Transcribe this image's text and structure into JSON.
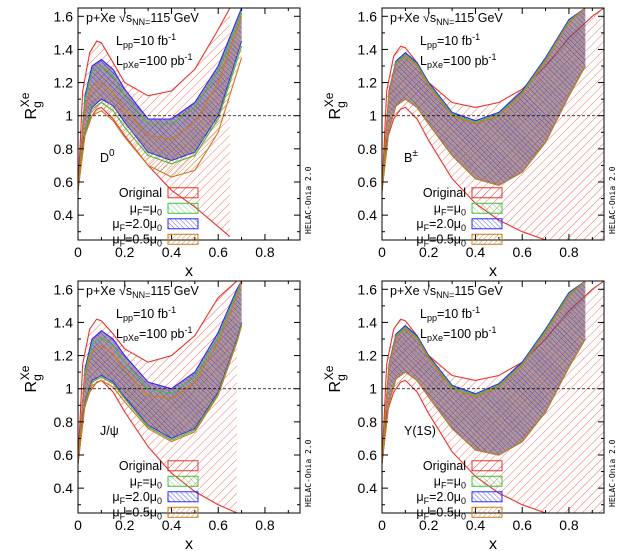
{
  "colors": {
    "original": "#e8322b",
    "mu_1": "#3fbf3f",
    "mu_2": "#2a2aff",
    "mu_05": "#cc7a22",
    "band_fill": "#7a3d70"
  },
  "chart_data": [
    {
      "type": "area",
      "particle": "D⁰",
      "system": "p+Xe √sNN=115 GeV",
      "lumi_pp": "Lpp=10 fb-1",
      "lumi_pxe": "LpXe=100 pb-1",
      "xlabel": "x",
      "ylabel": "RgXe",
      "xlim": [
        0,
        0.95
      ],
      "ylim": [
        0.25,
        1.65
      ],
      "x_ticks": [
        0,
        0.2,
        0.4,
        0.6,
        0.8
      ],
      "x_tick_labels": [
        "0",
        "0.2",
        "0.4",
        "0.6",
        "0.8"
      ],
      "y_ticks": [
        0.4,
        0.6,
        0.8,
        1.0,
        1.2,
        1.4,
        1.6
      ],
      "y_tick_labels": [
        "0.4",
        "0.6",
        "0.8",
        "1",
        "1.2",
        "1.4",
        "1.6"
      ],
      "reference_line_y": 1,
      "legend": [
        "Original",
        "μF=μ0",
        "μF=2.0μ0",
        "μF=0.5μ0"
      ],
      "watermark": "HELAC-Onia 2.0",
      "series": [
        {
          "name": "Original",
          "x": [
            0,
            0.02,
            0.05,
            0.08,
            0.1,
            0.15,
            0.2,
            0.3,
            0.4,
            0.5,
            0.6,
            0.65
          ],
          "upper": [
            0.55,
            1.15,
            1.38,
            1.45,
            1.44,
            1.32,
            1.2,
            1.12,
            1.15,
            1.28,
            1.52,
            1.65
          ],
          "lower": [
            0.55,
            0.85,
            0.98,
            1.04,
            1.05,
            0.98,
            0.88,
            0.7,
            0.55,
            0.45,
            0.33,
            0.27
          ]
        },
        {
          "name": "μF=2.0μ0",
          "x": [
            0,
            0.03,
            0.06,
            0.1,
            0.15,
            0.2,
            0.3,
            0.4,
            0.5,
            0.6,
            0.7
          ],
          "upper": [
            0.55,
            1.12,
            1.3,
            1.34,
            1.28,
            1.16,
            0.98,
            0.98,
            1.08,
            1.3,
            1.65
          ],
          "lower": [
            0.55,
            0.9,
            1.05,
            1.1,
            1.06,
            0.96,
            0.78,
            0.73,
            0.78,
            1.0,
            1.45
          ]
        },
        {
          "name": "μF=μ0",
          "x": [
            0,
            0.03,
            0.06,
            0.1,
            0.15,
            0.2,
            0.3,
            0.4,
            0.5,
            0.6,
            0.7
          ],
          "upper": [
            0.55,
            1.1,
            1.27,
            1.3,
            1.24,
            1.12,
            0.95,
            0.95,
            1.05,
            1.27,
            1.62
          ],
          "lower": [
            0.55,
            0.9,
            1.04,
            1.08,
            1.03,
            0.93,
            0.76,
            0.71,
            0.76,
            0.98,
            1.42
          ]
        },
        {
          "name": "μF=0.5μ0",
          "x": [
            0,
            0.03,
            0.06,
            0.1,
            0.15,
            0.2,
            0.3,
            0.4,
            0.5,
            0.6,
            0.7
          ],
          "upper": [
            0.55,
            1.05,
            1.18,
            1.2,
            1.14,
            1.04,
            0.88,
            0.86,
            0.96,
            1.2,
            1.6
          ],
          "lower": [
            0.55,
            0.88,
            1.0,
            1.03,
            0.97,
            0.87,
            0.7,
            0.63,
            0.67,
            0.9,
            1.35
          ]
        }
      ]
    },
    {
      "type": "area",
      "particle": "B±",
      "system": "p+Xe √sNN=115 GeV",
      "lumi_pp": "Lpp=10 fb-1",
      "lumi_pxe": "LpXe=100 pb-1",
      "xlabel": "x",
      "ylabel": "RgXe",
      "xlim": [
        0,
        0.95
      ],
      "ylim": [
        0.25,
        1.65
      ],
      "x_ticks": [
        0,
        0.2,
        0.4,
        0.6,
        0.8
      ],
      "x_tick_labels": [
        "0",
        "0.2",
        "0.4",
        "0.6",
        "0.8"
      ],
      "y_ticks": [
        0.4,
        0.6,
        0.8,
        1.0,
        1.2,
        1.4,
        1.6
      ],
      "y_tick_labels": [
        "0.4",
        "0.6",
        "0.8",
        "1",
        "1.2",
        "1.4",
        "1.6"
      ],
      "reference_line_y": 1,
      "legend": [
        "Original",
        "μF=μ0",
        "μF=2.0μ0",
        "μF=0.5μ0"
      ],
      "watermark": "HELAC-Onia 2.0",
      "series": [
        {
          "name": "Original",
          "x": [
            0,
            0.02,
            0.05,
            0.08,
            0.1,
            0.15,
            0.2,
            0.3,
            0.4,
            0.5,
            0.6,
            0.7,
            0.8,
            0.9,
            0.95
          ],
          "upper": [
            0.55,
            1.15,
            1.36,
            1.42,
            1.41,
            1.32,
            1.2,
            1.08,
            1.05,
            1.08,
            1.16,
            1.3,
            1.47,
            1.6,
            1.65
          ],
          "lower": [
            0.55,
            0.85,
            0.98,
            1.04,
            1.05,
            0.98,
            0.85,
            0.62,
            0.47,
            0.37,
            0.3,
            0.25,
            0.25,
            0.25,
            0.25
          ]
        },
        {
          "name": "μF=2.0μ0",
          "x": [
            0,
            0.03,
            0.06,
            0.1,
            0.15,
            0.2,
            0.3,
            0.4,
            0.5,
            0.6,
            0.7,
            0.8,
            0.87
          ],
          "upper": [
            0.55,
            1.15,
            1.33,
            1.38,
            1.32,
            1.2,
            1.02,
            0.97,
            1.02,
            1.15,
            1.35,
            1.58,
            1.65
          ],
          "lower": [
            0.55,
            0.92,
            1.06,
            1.1,
            1.05,
            0.95,
            0.76,
            0.62,
            0.58,
            0.66,
            0.84,
            1.12,
            1.3
          ]
        },
        {
          "name": "μF=μ0",
          "x": [
            0,
            0.03,
            0.06,
            0.1,
            0.15,
            0.2,
            0.3,
            0.4,
            0.5,
            0.6,
            0.7,
            0.8,
            0.87
          ],
          "upper": [
            0.55,
            1.14,
            1.32,
            1.37,
            1.31,
            1.19,
            1.01,
            0.96,
            1.01,
            1.14,
            1.34,
            1.57,
            1.65
          ],
          "lower": [
            0.55,
            0.92,
            1.06,
            1.1,
            1.05,
            0.95,
            0.76,
            0.62,
            0.58,
            0.66,
            0.84,
            1.12,
            1.3
          ]
        },
        {
          "name": "μF=0.5μ0",
          "x": [
            0,
            0.03,
            0.06,
            0.1,
            0.15,
            0.2,
            0.3,
            0.4,
            0.5,
            0.6,
            0.7,
            0.8,
            0.87
          ],
          "upper": [
            0.55,
            1.13,
            1.31,
            1.36,
            1.3,
            1.18,
            1.0,
            0.95,
            1.0,
            1.13,
            1.33,
            1.56,
            1.65
          ],
          "lower": [
            0.55,
            0.92,
            1.06,
            1.1,
            1.05,
            0.95,
            0.76,
            0.62,
            0.58,
            0.66,
            0.84,
            1.12,
            1.3
          ]
        }
      ]
    },
    {
      "type": "area",
      "particle": "J/ψ",
      "system": "p+Xe √sNN=115 GeV",
      "lumi_pp": "Lpp=10 fb-1",
      "lumi_pxe": "LpXe=100 pb-1",
      "xlabel": "x",
      "ylabel": "RgXe",
      "xlim": [
        0,
        0.95
      ],
      "ylim": [
        0.25,
        1.65
      ],
      "x_ticks": [
        0,
        0.2,
        0.4,
        0.6,
        0.8
      ],
      "x_tick_labels": [
        "0",
        "0.2",
        "0.4",
        "0.6",
        "0.8"
      ],
      "y_ticks": [
        0.4,
        0.6,
        0.8,
        1.0,
        1.2,
        1.4,
        1.6
      ],
      "y_tick_labels": [
        "0.4",
        "0.6",
        "0.8",
        "1",
        "1.2",
        "1.4",
        "1.6"
      ],
      "reference_line_y": 1,
      "legend": [
        "Original",
        "μF=μ0",
        "μF=2.0μ0",
        "μF=0.5μ0"
      ],
      "watermark": "HELAC-Onia 2.0",
      "series": [
        {
          "name": "Original",
          "x": [
            0,
            0.02,
            0.05,
            0.08,
            0.1,
            0.15,
            0.2,
            0.3,
            0.4,
            0.5,
            0.6,
            0.68
          ],
          "upper": [
            0.55,
            1.15,
            1.36,
            1.42,
            1.41,
            1.33,
            1.24,
            1.16,
            1.2,
            1.32,
            1.55,
            1.65
          ],
          "lower": [
            0.55,
            0.85,
            0.98,
            1.04,
            1.05,
            0.98,
            0.86,
            0.65,
            0.49,
            0.38,
            0.3,
            0.25
          ]
        },
        {
          "name": "μF=2.0μ0",
          "x": [
            0,
            0.03,
            0.06,
            0.1,
            0.15,
            0.2,
            0.3,
            0.4,
            0.5,
            0.6,
            0.68,
            0.7
          ],
          "upper": [
            0.55,
            1.12,
            1.3,
            1.35,
            1.3,
            1.2,
            1.04,
            1.0,
            1.1,
            1.34,
            1.6,
            1.65
          ],
          "lower": [
            0.55,
            0.92,
            1.05,
            1.08,
            1.04,
            0.95,
            0.78,
            0.7,
            0.76,
            0.98,
            1.3,
            1.4
          ]
        },
        {
          "name": "μF=μ0",
          "x": [
            0,
            0.03,
            0.06,
            0.1,
            0.15,
            0.2,
            0.3,
            0.4,
            0.5,
            0.6,
            0.68,
            0.7
          ],
          "upper": [
            0.55,
            1.1,
            1.27,
            1.31,
            1.26,
            1.16,
            1.0,
            0.97,
            1.07,
            1.31,
            1.58,
            1.65
          ],
          "lower": [
            0.55,
            0.91,
            1.04,
            1.07,
            1.03,
            0.94,
            0.77,
            0.69,
            0.75,
            0.97,
            1.29,
            1.39
          ]
        },
        {
          "name": "μF=0.5μ0",
          "x": [
            0,
            0.03,
            0.06,
            0.1,
            0.15,
            0.2,
            0.3,
            0.4,
            0.5,
            0.6,
            0.68,
            0.7
          ],
          "upper": [
            0.55,
            1.08,
            1.22,
            1.26,
            1.21,
            1.11,
            0.96,
            0.94,
            1.04,
            1.28,
            1.56,
            1.65
          ],
          "lower": [
            0.55,
            0.9,
            1.02,
            1.05,
            1.01,
            0.92,
            0.76,
            0.68,
            0.74,
            0.96,
            1.28,
            1.38
          ]
        }
      ]
    },
    {
      "type": "area",
      "particle": "Υ(1S)",
      "system": "p+Xe √sNN=115 GeV",
      "lumi_pp": "Lpp=10 fb-1",
      "lumi_pxe": "LpXe=100 pb-1",
      "xlabel": "x",
      "ylabel": "RgXe",
      "xlim": [
        0,
        0.95
      ],
      "ylim": [
        0.25,
        1.65
      ],
      "x_ticks": [
        0,
        0.2,
        0.4,
        0.6,
        0.8
      ],
      "x_tick_labels": [
        "0",
        "0.2",
        "0.4",
        "0.6",
        "0.8"
      ],
      "y_ticks": [
        0.4,
        0.6,
        0.8,
        1.0,
        1.2,
        1.4,
        1.6
      ],
      "y_tick_labels": [
        "0.4",
        "0.6",
        "0.8",
        "1",
        "1.2",
        "1.4",
        "1.6"
      ],
      "reference_line_y": 1,
      "legend": [
        "Original",
        "μF=μ0",
        "μF=2.0μ0",
        "μF=0.5μ0"
      ],
      "watermark": "HELAC-Onia 2.0",
      "series": [
        {
          "name": "Original",
          "x": [
            0,
            0.02,
            0.05,
            0.08,
            0.1,
            0.15,
            0.2,
            0.3,
            0.4,
            0.5,
            0.6,
            0.7,
            0.8,
            0.9,
            0.95
          ],
          "upper": [
            0.55,
            1.15,
            1.36,
            1.42,
            1.41,
            1.32,
            1.2,
            1.08,
            1.05,
            1.08,
            1.16,
            1.3,
            1.47,
            1.6,
            1.65
          ],
          "lower": [
            0.55,
            0.85,
            0.98,
            1.04,
            1.05,
            0.98,
            0.85,
            0.62,
            0.47,
            0.37,
            0.3,
            0.25,
            0.25,
            0.25,
            0.25
          ]
        },
        {
          "name": "μF=2.0μ0",
          "x": [
            0,
            0.03,
            0.06,
            0.1,
            0.15,
            0.2,
            0.3,
            0.4,
            0.5,
            0.6,
            0.7,
            0.8,
            0.87
          ],
          "upper": [
            0.55,
            1.15,
            1.33,
            1.38,
            1.32,
            1.2,
            1.02,
            0.97,
            1.03,
            1.16,
            1.36,
            1.58,
            1.65
          ],
          "lower": [
            0.55,
            0.92,
            1.06,
            1.1,
            1.05,
            0.95,
            0.76,
            0.63,
            0.6,
            0.68,
            0.86,
            1.13,
            1.3
          ]
        },
        {
          "name": "μF=μ0",
          "x": [
            0,
            0.03,
            0.06,
            0.1,
            0.15,
            0.2,
            0.3,
            0.4,
            0.5,
            0.6,
            0.7,
            0.8,
            0.87
          ],
          "upper": [
            0.55,
            1.14,
            1.32,
            1.37,
            1.31,
            1.19,
            1.01,
            0.96,
            1.02,
            1.15,
            1.35,
            1.57,
            1.65
          ],
          "lower": [
            0.55,
            0.92,
            1.06,
            1.1,
            1.05,
            0.95,
            0.76,
            0.63,
            0.6,
            0.68,
            0.86,
            1.13,
            1.3
          ]
        },
        {
          "name": "μF=0.5μ0",
          "x": [
            0,
            0.03,
            0.06,
            0.1,
            0.15,
            0.2,
            0.3,
            0.4,
            0.5,
            0.6,
            0.7,
            0.8,
            0.87
          ],
          "upper": [
            0.55,
            1.13,
            1.31,
            1.36,
            1.3,
            1.18,
            1.0,
            0.95,
            1.01,
            1.14,
            1.34,
            1.56,
            1.65
          ],
          "lower": [
            0.55,
            0.92,
            1.06,
            1.1,
            1.05,
            0.95,
            0.76,
            0.63,
            0.6,
            0.68,
            0.86,
            1.13,
            1.3
          ]
        }
      ]
    }
  ]
}
